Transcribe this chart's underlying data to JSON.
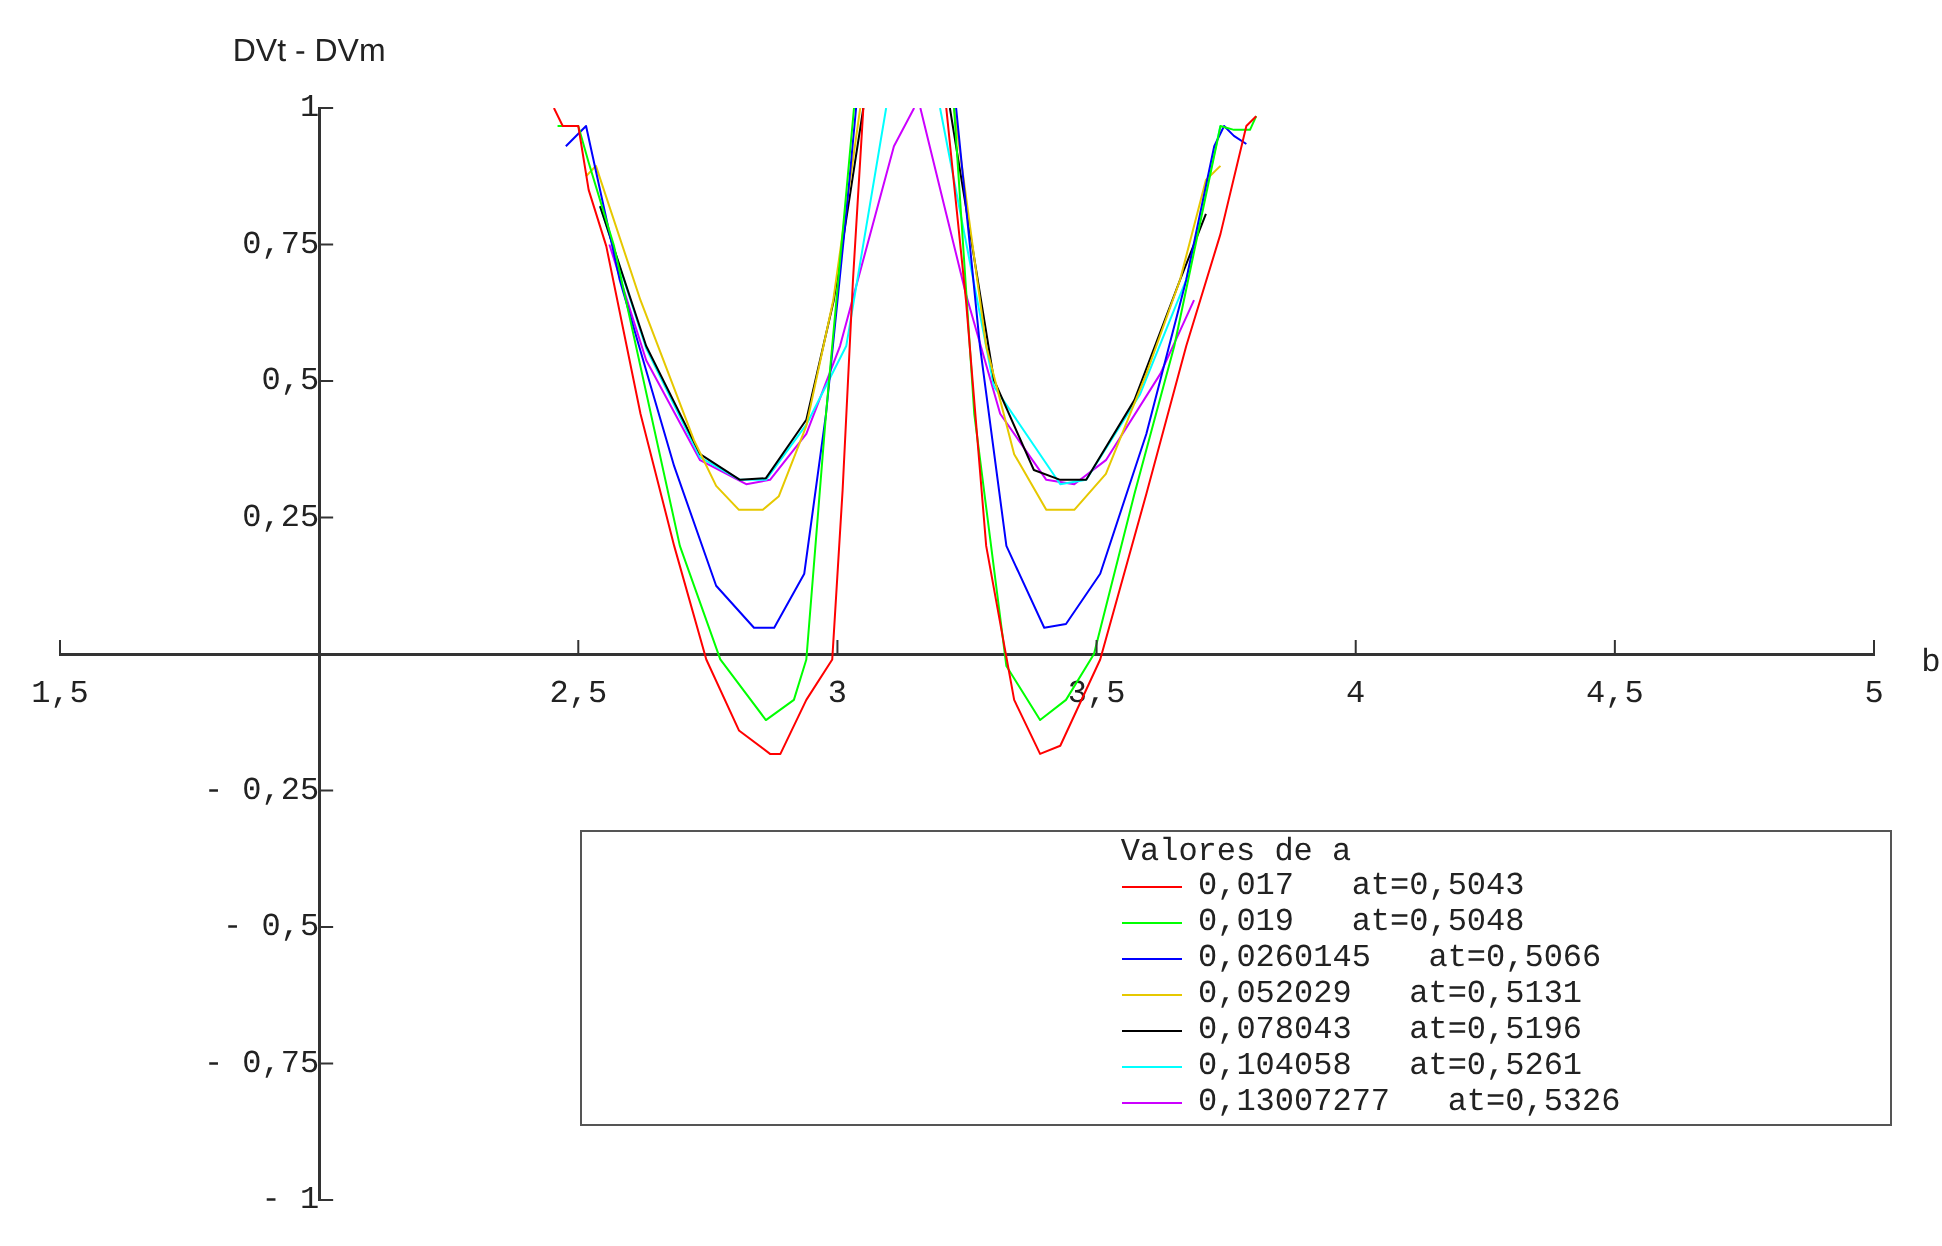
{
  "chart_data": {
    "type": "line",
    "ylabel": "DVt - DVm",
    "xlabel": "b",
    "legend_title": "Valores de a",
    "legend": "bottom right",
    "grid": false,
    "marker": "none",
    "line_style": "solid",
    "xlim": [
      1.5,
      5
    ],
    "ylim": [
      -1,
      1
    ],
    "xticks": [
      {
        "value": 1.5,
        "label": "1,5"
      },
      {
        "value": 2.5,
        "label": "2,5"
      },
      3,
      {
        "value": 3.5,
        "label": "3,5"
      },
      4,
      {
        "value": 4.5,
        "label": "4,5"
      },
      5
    ],
    "yticks": [
      1,
      {
        "value": 0.75,
        "label": "0,75"
      },
      {
        "value": 0.5,
        "label": "0,5"
      },
      {
        "value": 0.25,
        "label": "0,25"
      },
      {
        "value": -0.25,
        "label": "- 0,25"
      },
      {
        "value": -0.5,
        "label": "- 0,5"
      },
      {
        "value": -0.75,
        "label": "- 0,75"
      },
      {
        "value": -1,
        "label": "- 1"
      }
    ],
    "series": [
      {
        "name": "0,017   at=0,5043",
        "color": "#ff0000",
        "x": [
          2.453,
          2.47,
          2.5,
          2.52,
          2.554,
          2.62,
          2.685,
          2.747,
          2.81,
          2.87,
          2.89,
          2.94,
          2.99,
          3.01,
          3.03,
          3.05,
          3.13,
          3.21,
          3.248,
          3.287,
          3.341,
          3.391,
          3.43,
          3.507,
          3.596,
          3.673,
          3.739,
          3.789,
          3.808
        ],
        "values": [
          1,
          0.967,
          0.967,
          0.85,
          0.747,
          0.44,
          0.198,
          -0.01,
          -0.14,
          -0.183,
          -0.183,
          -0.084,
          -0.01,
          0.3,
          0.685,
          1,
          null,
          1,
          0.648,
          0.198,
          -0.084,
          -0.183,
          -0.168,
          -0.01,
          0.293,
          0.564,
          0.769,
          0.967,
          0.985
        ]
      },
      {
        "name": "0,019   at=0,5048",
        "color": "#00ff00",
        "x": [
          2.46,
          2.5,
          2.52,
          2.569,
          2.696,
          2.774,
          2.862,
          2.916,
          2.94,
          2.978,
          3.032,
          3.13,
          3.225,
          3.264,
          3.326,
          3.391,
          3.441,
          3.495,
          3.573,
          3.65,
          3.739,
          3.765,
          3.796,
          3.808
        ],
        "values": [
          0.967,
          0.967,
          0.9,
          0.747,
          0.198,
          -0.01,
          -0.121,
          -0.084,
          -0.01,
          0.44,
          1,
          null,
          1,
          0.44,
          -0.022,
          -0.121,
          -0.084,
          0,
          0.293,
          0.564,
          0.967,
          0.96,
          0.96,
          0.985
        ]
      },
      {
        "name": "0,0260145   at=0,5066",
        "color": "#0000ff",
        "x": [
          2.476,
          2.515,
          2.58,
          2.685,
          2.766,
          2.839,
          2.878,
          2.936,
          2.978,
          3.017,
          3.036,
          3.13,
          3.229,
          3.275,
          3.326,
          3.399,
          3.441,
          3.507,
          3.596,
          3.673,
          3.727,
          3.746,
          3.765,
          3.789
        ],
        "values": [
          0.93,
          0.967,
          0.685,
          0.344,
          0.125,
          0.048,
          0.048,
          0.147,
          0.44,
          0.806,
          1,
          null,
          1,
          0.564,
          0.198,
          0.048,
          0.055,
          0.147,
          0.403,
          0.685,
          0.93,
          0.967,
          0.949,
          0.934
        ]
      },
      {
        "name": "0,052029   at=0,5131",
        "color": "#e6c800",
        "x": [
          2.515,
          2.534,
          2.62,
          2.723,
          2.766,
          2.81,
          2.856,
          2.887,
          2.94,
          2.992,
          3.044,
          3.13,
          3.225,
          3.287,
          3.341,
          3.403,
          3.457,
          3.518,
          3.596,
          3.661,
          3.711,
          3.739
        ],
        "values": [
          0.875,
          0.894,
          0.648,
          0.392,
          0.308,
          0.264,
          0.264,
          0.289,
          0.418,
          0.648,
          1,
          null,
          1,
          0.564,
          0.366,
          0.264,
          0.264,
          0.33,
          0.513,
          0.685,
          0.868,
          0.894
        ]
      },
      {
        "name": "0,078043   at=0,5196",
        "color": "#000000",
        "x": [
          2.542,
          2.631,
          2.735,
          2.812,
          2.862,
          2.94,
          2.993,
          3.05,
          3.13,
          3.217,
          3.302,
          3.379,
          3.43,
          3.48,
          3.573,
          3.661,
          3.711
        ],
        "values": [
          0.82,
          0.564,
          0.366,
          0.319,
          0.322,
          0.429,
          0.648,
          1,
          null,
          1,
          0.502,
          0.337,
          0.319,
          0.319,
          0.465,
          0.685,
          0.806
        ]
      },
      {
        "name": "0,104058   at=0,5261",
        "color": "#00ffff",
        "x": [
          2.542,
          2.631,
          2.735,
          2.812,
          2.862,
          2.94,
          3.017,
          3.094,
          3.146,
          3.198,
          3.302,
          3.43,
          3.48,
          3.584,
          3.673,
          3.739
        ],
        "values": [
          0.82,
          0.56,
          0.36,
          0.319,
          0.319,
          0.42,
          0.564,
          1,
          null,
          1,
          0.49,
          0.311,
          0.319,
          0.476,
          0.685,
          0.967
        ]
      },
      {
        "name": "0,13007277   at=0,5326",
        "color": "#cc00ff",
        "x": [
          2.56,
          2.631,
          2.735,
          2.824,
          2.87,
          2.94,
          3.005,
          3.109,
          3.148,
          3.154,
          3.16,
          3.21,
          3.248,
          3.314,
          3.403,
          3.457,
          3.518,
          3.623,
          3.688
        ],
        "values": [
          0.75,
          0.538,
          0.355,
          0.311,
          0.319,
          0.403,
          0.564,
          0.93,
          1,
          null,
          1,
          0.806,
          0.659,
          0.44,
          0.319,
          0.311,
          0.355,
          0.513,
          0.648
        ]
      }
    ]
  }
}
